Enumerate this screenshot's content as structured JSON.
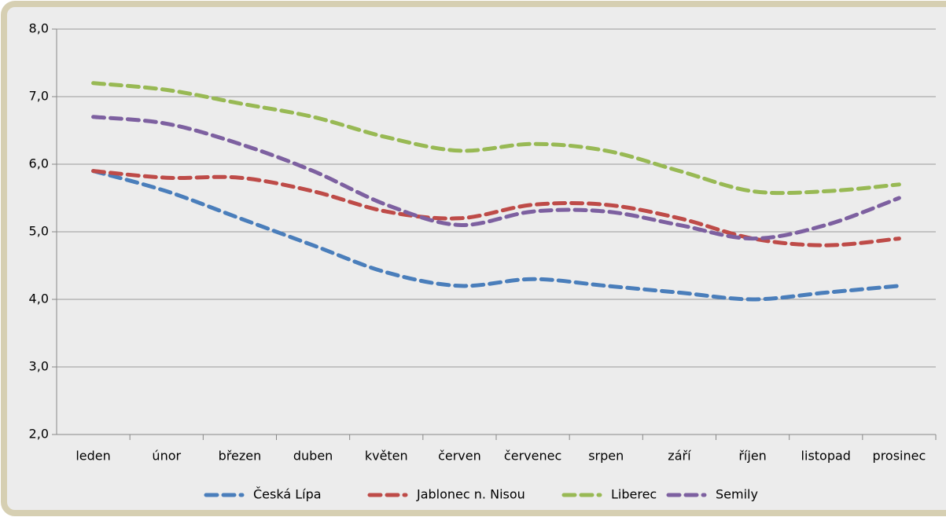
{
  "chart_data": {
    "type": "line",
    "categories": [
      "leden",
      "únor",
      "březen",
      "duben",
      "květen",
      "červen",
      "červenec",
      "srpen",
      "září",
      "říjen",
      "listopad",
      "prosinec"
    ],
    "series": [
      {
        "name": "Česká Lípa",
        "color": "#4a7ebb",
        "values": [
          5.9,
          5.6,
          5.2,
          4.8,
          4.4,
          4.2,
          4.3,
          4.2,
          4.1,
          4.0,
          4.1,
          4.2
        ]
      },
      {
        "name": "Jablonec n. Nisou",
        "color": "#be4b48",
        "values": [
          5.9,
          5.8,
          5.8,
          5.6,
          5.3,
          5.2,
          5.4,
          5.4,
          5.2,
          4.9,
          4.8,
          4.9
        ]
      },
      {
        "name": "Liberec",
        "color": "#98b954",
        "values": [
          7.2,
          7.1,
          6.9,
          6.7,
          6.4,
          6.2,
          6.3,
          6.2,
          5.9,
          5.6,
          5.6,
          5.7
        ]
      },
      {
        "name": "Semily",
        "color": "#7d60a0",
        "values": [
          6.7,
          6.6,
          6.3,
          5.9,
          5.4,
          5.1,
          5.3,
          5.3,
          5.1,
          4.9,
          5.1,
          5.5
        ]
      }
    ],
    "ylim": [
      2,
      8
    ],
    "yticks": [
      {
        "value": 2,
        "label": "2,0"
      },
      {
        "value": 3,
        "label": "3,0"
      },
      {
        "value": 4,
        "label": "4,0"
      },
      {
        "value": 5,
        "label": "5,0"
      },
      {
        "value": 6,
        "label": "6,0"
      },
      {
        "value": 7,
        "label": "7,0"
      },
      {
        "value": 8,
        "label": "8,0"
      }
    ],
    "grid": true,
    "smooth": true,
    "legend": "bottom"
  }
}
